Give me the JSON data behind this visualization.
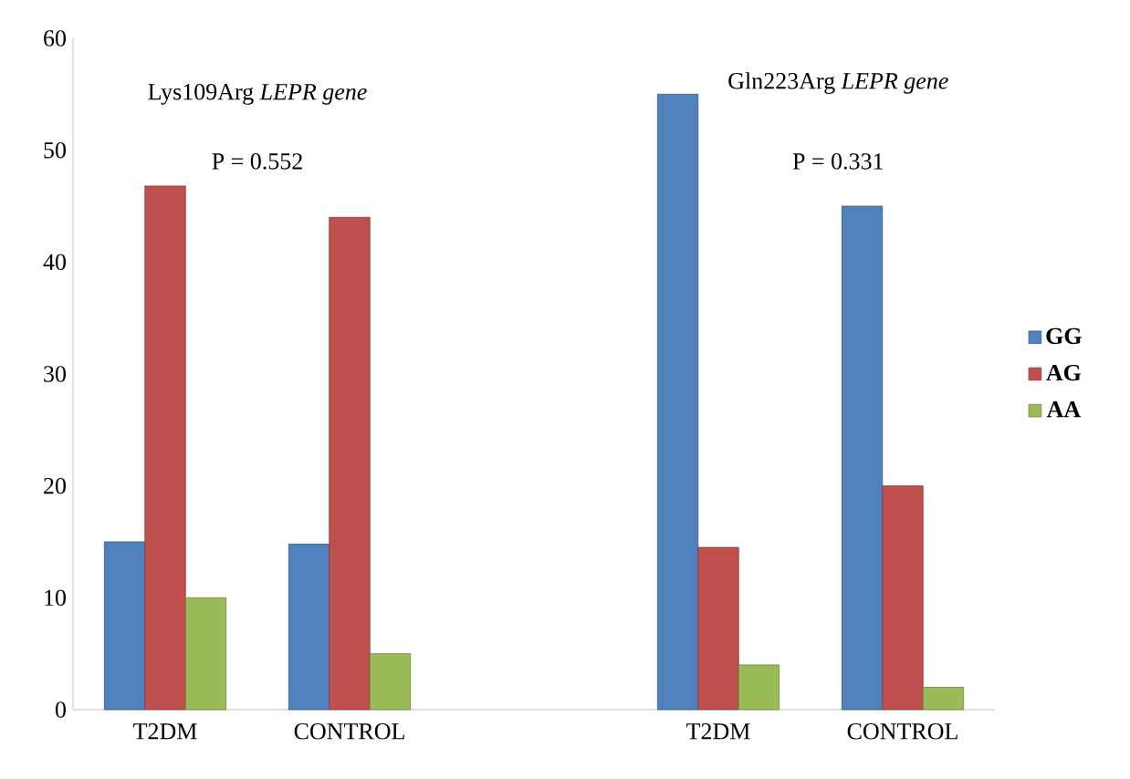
{
  "chart_data": {
    "type": "bar",
    "categories": [
      "T2DM",
      "CONTROL",
      null,
      "T2DM",
      "CONTROL"
    ],
    "series": [
      {
        "name": "GG",
        "color": "#4f81bd",
        "values": [
          15,
          14.8,
          null,
          55,
          45
        ]
      },
      {
        "name": "AG",
        "color": "#c0504d",
        "values": [
          46.8,
          44,
          null,
          14.5,
          20
        ]
      },
      {
        "name": "AA",
        "color": "#9bbb59",
        "values": [
          10,
          5,
          null,
          4,
          2
        ]
      }
    ],
    "ylim": [
      0,
      60
    ],
    "yticks": [
      0,
      10,
      20,
      30,
      40,
      50,
      60
    ],
    "grid": false,
    "legend": "right",
    "annotations": [
      "Lys109Arg *LEPR gene*",
      "P = 0.552",
      "Gln223Arg *LEPR gene*",
      "P = 0.331"
    ]
  }
}
